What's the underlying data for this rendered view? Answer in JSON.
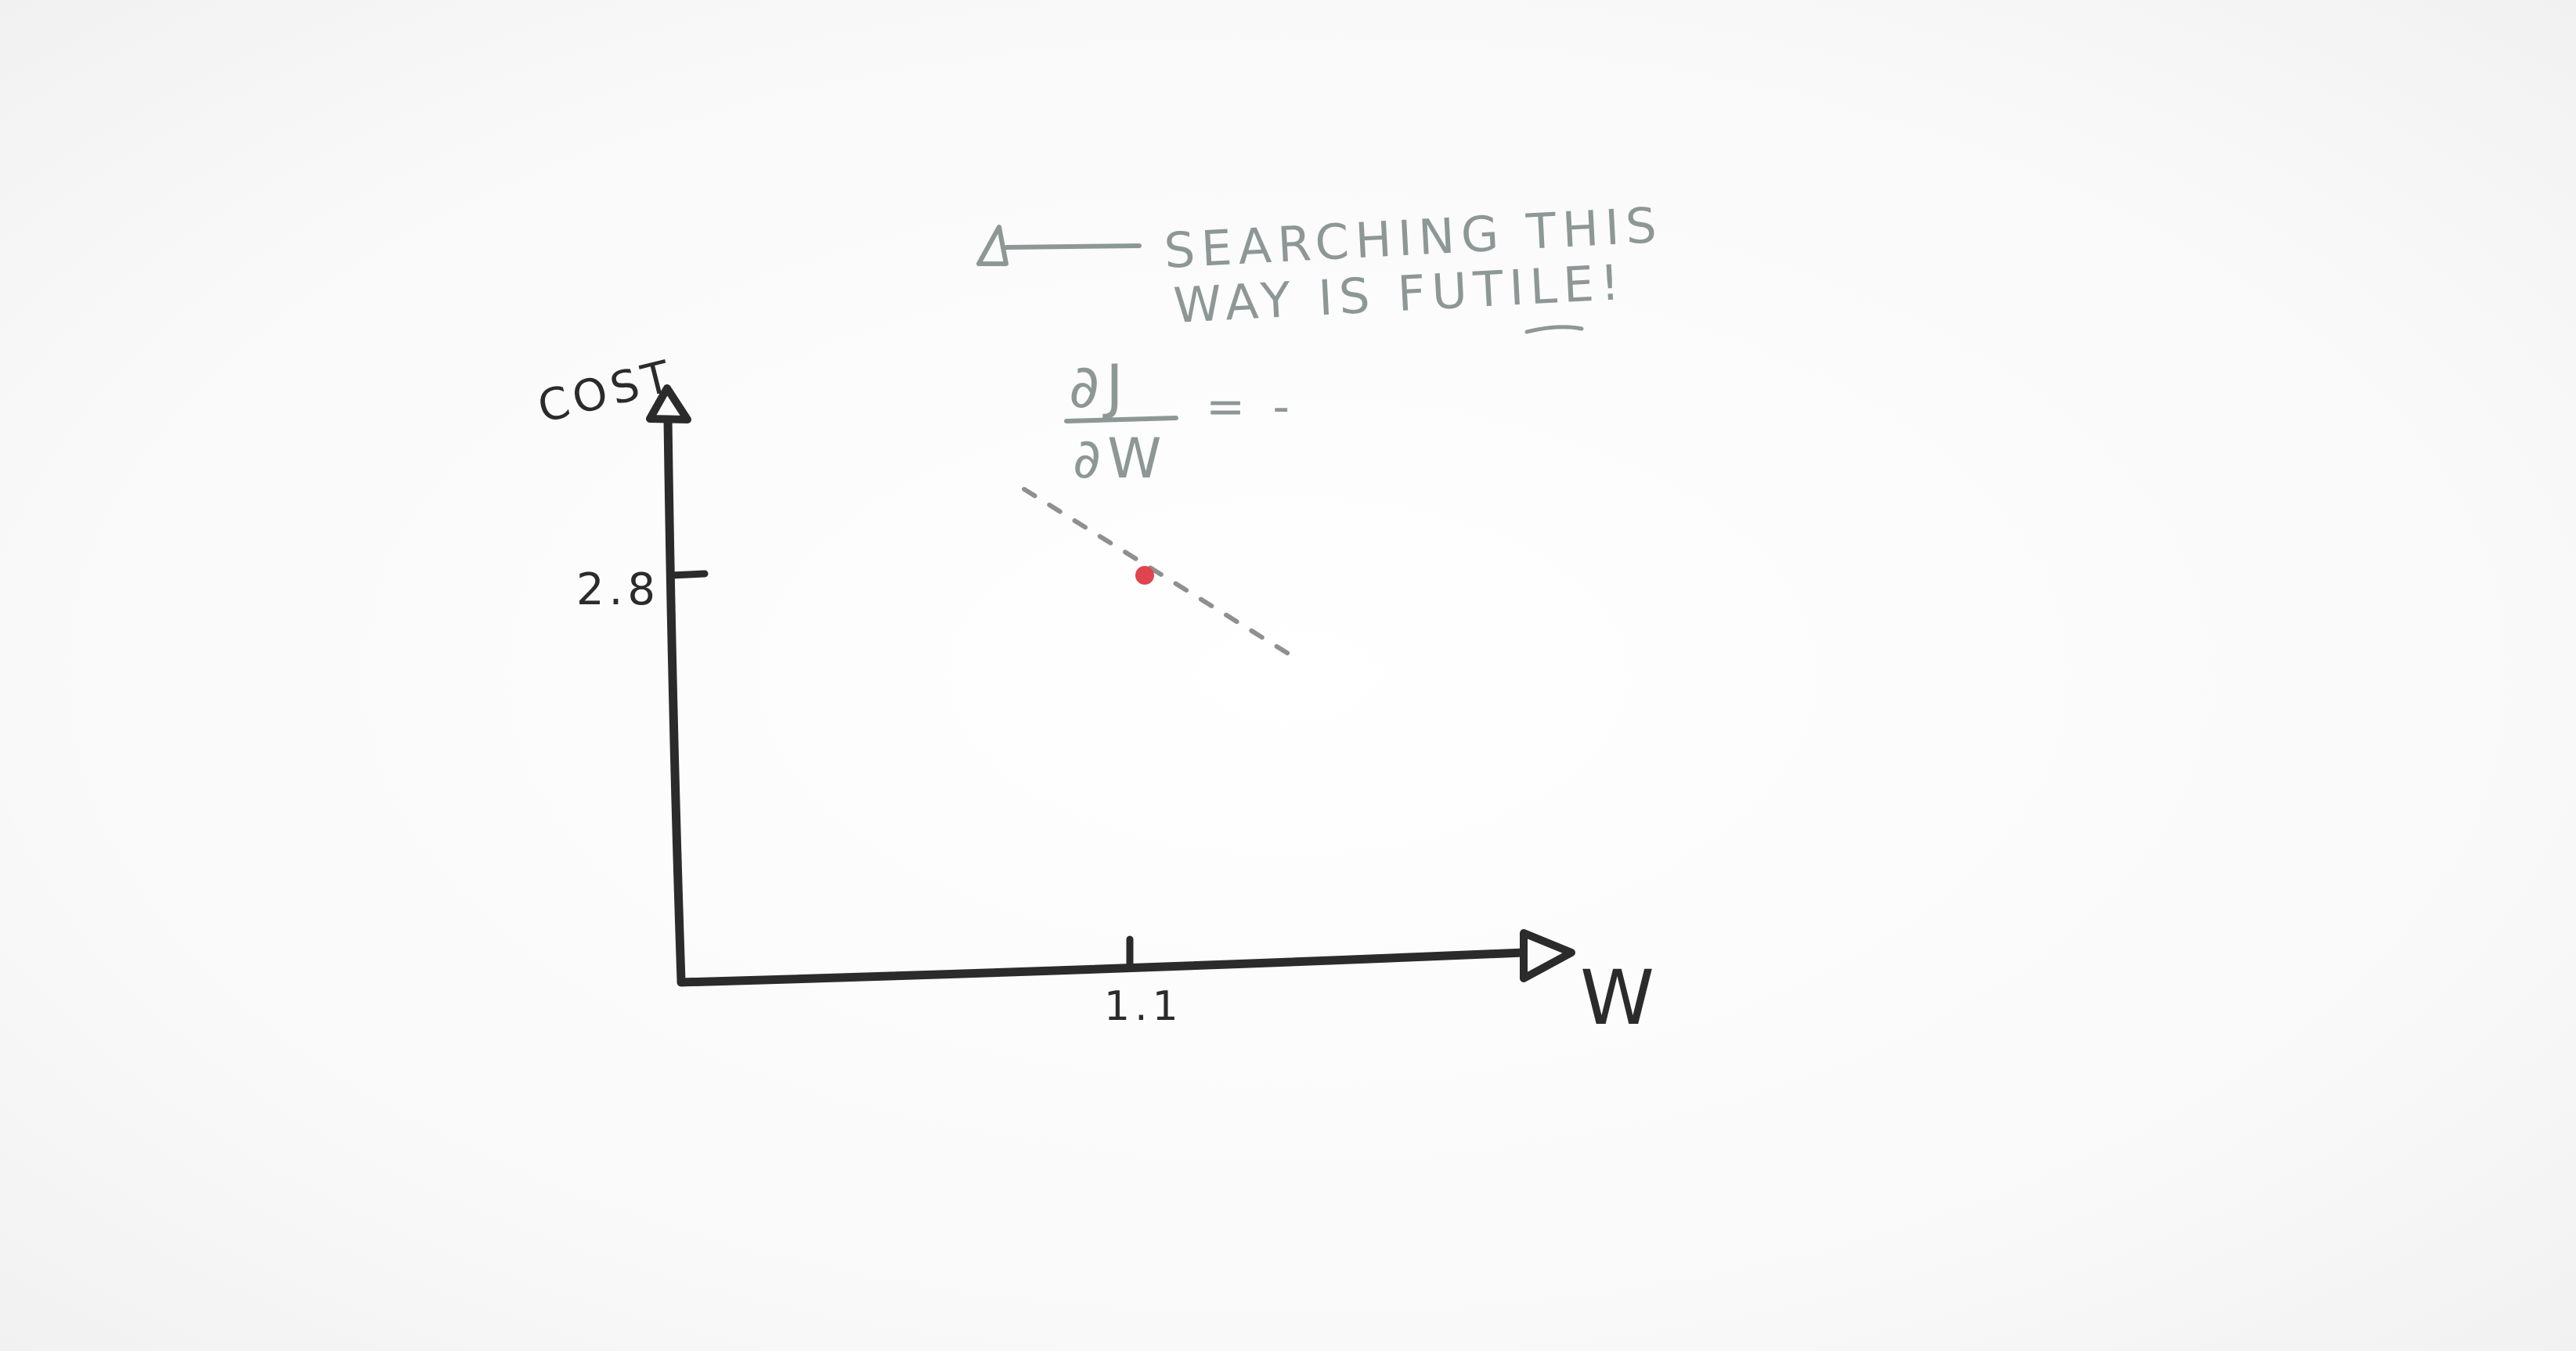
{
  "y_axis_label": "COST",
  "x_axis_label": "W",
  "y_tick_label": "2.8",
  "x_tick_label": "1.1",
  "annotation": {
    "line1": "SEARCHING THIS",
    "line2": "WAY IS FUTILE!"
  },
  "derivative": {
    "numerator": "∂J",
    "denominator": "∂W",
    "sign": "= -"
  },
  "colors": {
    "axis_ink": "#2b2b2b",
    "annotation_ink": "#8d9896",
    "point": "#e0444f",
    "tangent": "#8f8f8f",
    "background": "#fbfbfb"
  }
}
